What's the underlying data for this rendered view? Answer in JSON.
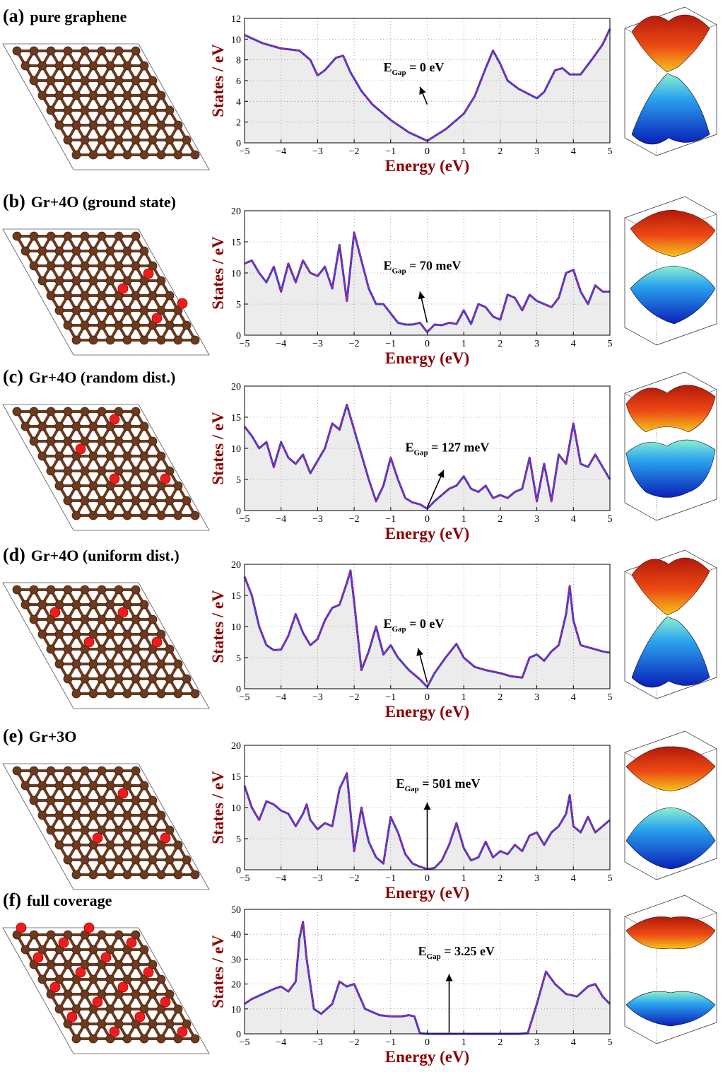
{
  "figure_title": "Graphene oxidation DOS and band structures",
  "colors": {
    "curve": "#1f3fff",
    "dash": "#ff1a1a",
    "fill": "#ececec",
    "axis_label": "#8b0000",
    "carbon": "#6b3a1f",
    "oxygen": "#ee1c1c"
  },
  "chart_data": [
    {
      "id": "a",
      "panel_label": "(a)",
      "title": "pure graphene",
      "type": "area",
      "xlabel": "Energy (eV)",
      "ylabel": "States / eV",
      "xlim": [
        -5,
        5
      ],
      "ylim": [
        0,
        12
      ],
      "xticks": [
        -5,
        -4,
        -3,
        -2,
        -1,
        0,
        1,
        2,
        3,
        4,
        5
      ],
      "yticks": [
        0,
        2,
        4,
        6,
        8,
        10,
        12
      ],
      "x": [
        -5,
        -4.5,
        -4,
        -3.5,
        -3.2,
        -3,
        -2.8,
        -2.5,
        -2.3,
        -2.1,
        -1.8,
        -1.5,
        -1,
        -0.5,
        0,
        0.5,
        1,
        1.3,
        1.6,
        1.8,
        2.0,
        2.2,
        2.5,
        3,
        3.2,
        3.5,
        3.7,
        3.9,
        4.2,
        4.5,
        4.8,
        5
      ],
      "y": [
        10.4,
        9.6,
        9.1,
        8.9,
        8.0,
        6.5,
        7.0,
        8.2,
        8.4,
        6.8,
        5.0,
        3.7,
        2.2,
        1.0,
        0.2,
        1.3,
        2.8,
        4.5,
        7.2,
        8.9,
        7.6,
        6.0,
        5.2,
        4.3,
        4.9,
        7.0,
        7.2,
        6.6,
        6.6,
        8.0,
        9.5,
        11.0
      ],
      "gap_text_main": "E",
      "gap_text_sub": "Gap",
      "gap_text_value": " = 0 eV",
      "gap_label_pos": [
        -1.2,
        6.9
      ],
      "arrow_from": [
        0.0,
        3.7
      ],
      "arrow_to": [
        -0.2,
        5.4
      ]
    },
    {
      "id": "b",
      "panel_label": "(b)",
      "title": "Gr+4O (ground state)",
      "type": "area",
      "xlabel": "Energy (eV)",
      "ylabel": "States / eV",
      "xlim": [
        -5,
        5
      ],
      "ylim": [
        0,
        20
      ],
      "xticks": [
        -5,
        -4,
        -3,
        -2,
        -1,
        0,
        1,
        2,
        3,
        4,
        5
      ],
      "yticks": [
        0,
        5,
        10,
        15,
        20
      ],
      "x": [
        -5,
        -4.8,
        -4.6,
        -4.4,
        -4.2,
        -4.0,
        -3.8,
        -3.6,
        -3.4,
        -3.2,
        -3.0,
        -2.8,
        -2.6,
        -2.4,
        -2.2,
        -2.0,
        -1.8,
        -1.6,
        -1.4,
        -1.2,
        -1.0,
        -0.8,
        -0.6,
        -0.4,
        -0.2,
        0,
        0.2,
        0.4,
        0.6,
        0.8,
        1.0,
        1.2,
        1.4,
        1.6,
        1.8,
        2.0,
        2.2,
        2.4,
        2.6,
        2.8,
        3.0,
        3.2,
        3.4,
        3.6,
        3.8,
        4.0,
        4.2,
        4.4,
        4.6,
        4.8,
        5
      ],
      "y": [
        11.5,
        12.0,
        10.0,
        8.5,
        11.0,
        7.0,
        11.5,
        8.5,
        12.0,
        10.0,
        9.5,
        11.0,
        7.5,
        14.5,
        5.5,
        16.5,
        12.0,
        7.5,
        5.0,
        5.0,
        3.5,
        2.0,
        1.7,
        1.7,
        2.0,
        0.5,
        1.7,
        1.6,
        2.0,
        1.8,
        4.0,
        1.8,
        5.0,
        4.5,
        3.0,
        2.5,
        6.5,
        6.0,
        4.0,
        6.5,
        5.5,
        5.0,
        4.5,
        6.0,
        10.0,
        10.5,
        7.0,
        5.0,
        8.0,
        7.0,
        7.0
      ],
      "gap_text_main": "E",
      "gap_text_sub": "Gap",
      "gap_text_value": " = 70 meV",
      "gap_label_pos": [
        -1.2,
        10.5
      ],
      "arrow_from": [
        0.0,
        2.0
      ],
      "arrow_to": [
        -0.2,
        7.0
      ]
    },
    {
      "id": "c",
      "panel_label": "(c)",
      "title": "Gr+4O (random dist.)",
      "type": "area",
      "xlabel": "Energy (eV)",
      "ylabel": "States / eV",
      "xlim": [
        -5,
        5
      ],
      "ylim": [
        0,
        20
      ],
      "xticks": [
        -5,
        -4,
        -3,
        -2,
        -1,
        0,
        1,
        2,
        3,
        4,
        5
      ],
      "yticks": [
        0,
        5,
        10,
        15,
        20
      ],
      "x": [
        -5,
        -4.8,
        -4.6,
        -4.4,
        -4.2,
        -4.0,
        -3.8,
        -3.6,
        -3.4,
        -3.2,
        -3.0,
        -2.8,
        -2.6,
        -2.4,
        -2.2,
        -2.0,
        -1.8,
        -1.6,
        -1.4,
        -1.2,
        -1.0,
        -0.8,
        -0.6,
        -0.4,
        -0.2,
        0,
        0.2,
        0.4,
        0.6,
        0.8,
        1.0,
        1.2,
        1.4,
        1.6,
        1.8,
        2.0,
        2.2,
        2.4,
        2.6,
        2.8,
        3.0,
        3.2,
        3.4,
        3.6,
        3.8,
        4.0,
        4.2,
        4.4,
        4.6,
        4.8,
        5
      ],
      "y": [
        13.5,
        12.0,
        10.0,
        11.0,
        7.0,
        11.0,
        8.5,
        7.5,
        9.0,
        6.0,
        8.0,
        10.0,
        14.0,
        13.0,
        17.0,
        13.0,
        9.0,
        5.0,
        1.5,
        4.0,
        8.5,
        5.0,
        2.0,
        1.3,
        1.0,
        0.3,
        1.5,
        2.5,
        3.5,
        4.0,
        5.5,
        3.5,
        3.0,
        4.0,
        2.0,
        2.5,
        2.0,
        3.0,
        3.5,
        8.5,
        1.5,
        7.5,
        1.5,
        9.0,
        7.5,
        14.0,
        7.5,
        7.0,
        9.0,
        7.0,
        5.0
      ],
      "gap_text_main": "E",
      "gap_text_sub": "Gap",
      "gap_text_value": " = 127 meV",
      "gap_label_pos": [
        -0.6,
        9.5
      ],
      "arrow_from": [
        0.0,
        0.5
      ],
      "arrow_to": [
        0.45,
        6.5
      ]
    },
    {
      "id": "d",
      "panel_label": "(d)",
      "title": "Gr+4O (uniform dist.)",
      "type": "area",
      "xlabel": "Energy (eV)",
      "ylabel": "States / eV",
      "xlim": [
        -5,
        5
      ],
      "ylim": [
        0,
        20
      ],
      "xticks": [
        -5,
        -4,
        -3,
        -2,
        -1,
        0,
        1,
        2,
        3,
        4,
        5
      ],
      "yticks": [
        0,
        5,
        10,
        15,
        20
      ],
      "x": [
        -5,
        -4.8,
        -4.6,
        -4.4,
        -4.2,
        -4.0,
        -3.8,
        -3.6,
        -3.4,
        -3.2,
        -3.0,
        -2.8,
        -2.6,
        -2.4,
        -2.2,
        -2.1,
        -2.0,
        -1.8,
        -1.6,
        -1.4,
        -1.2,
        -1.0,
        -0.8,
        -0.5,
        -0.2,
        0,
        0.2,
        0.5,
        0.8,
        1.0,
        1.3,
        1.6,
        2.0,
        2.3,
        2.6,
        2.8,
        3.0,
        3.2,
        3.4,
        3.6,
        3.8,
        3.9,
        4.0,
        4.2,
        4.5,
        4.8,
        5
      ],
      "y": [
        18.0,
        15.0,
        10.0,
        7.0,
        6.2,
        6.3,
        8.5,
        12.0,
        9.0,
        7.0,
        8.0,
        11.0,
        13.0,
        13.5,
        17.0,
        19.0,
        14.0,
        3.0,
        6.0,
        10.0,
        5.5,
        7.0,
        5.0,
        3.0,
        1.5,
        0.3,
        2.5,
        5.0,
        7.2,
        5.0,
        3.5,
        3.0,
        2.5,
        2.0,
        1.8,
        5.0,
        5.5,
        4.5,
        6.0,
        7.0,
        12.0,
        16.5,
        11.0,
        7.0,
        6.5,
        6.0,
        5.8
      ],
      "gap_text_main": "E",
      "gap_text_sub": "Gap",
      "gap_text_value": " = 0 eV",
      "gap_label_pos": [
        -1.2,
        9.8
      ],
      "arrow_from": [
        0.0,
        1.0
      ],
      "arrow_to": [
        -0.25,
        6.5
      ]
    },
    {
      "id": "e",
      "panel_label": "(e)",
      "title": "Gr+3O",
      "type": "area",
      "xlabel": "Energy (eV)",
      "ylabel": "States / eV",
      "xlim": [
        -5,
        5
      ],
      "ylim": [
        0,
        20
      ],
      "xticks": [
        -5,
        -4,
        -3,
        -2,
        -1,
        0,
        1,
        2,
        3,
        4,
        5
      ],
      "yticks": [
        0,
        5,
        10,
        15,
        20
      ],
      "x": [
        -5,
        -4.8,
        -4.6,
        -4.4,
        -4.2,
        -4.0,
        -3.8,
        -3.6,
        -3.4,
        -3.3,
        -3.2,
        -3.0,
        -2.8,
        -2.6,
        -2.4,
        -2.2,
        -2.0,
        -1.8,
        -1.7,
        -1.6,
        -1.4,
        -1.2,
        -1.0,
        -0.8,
        -0.6,
        -0.4,
        -0.2,
        0,
        0.2,
        0.4,
        0.6,
        0.8,
        1.0,
        1.2,
        1.4,
        1.6,
        1.8,
        2.0,
        2.2,
        2.4,
        2.6,
        2.8,
        3.0,
        3.2,
        3.4,
        3.6,
        3.8,
        3.9,
        4.0,
        4.2,
        4.4,
        4.6,
        4.8,
        5
      ],
      "y": [
        13.5,
        10.0,
        8.0,
        11.0,
        10.5,
        9.5,
        9.0,
        7.0,
        9.0,
        10.5,
        8.0,
        6.5,
        7.5,
        7.0,
        13.0,
        15.5,
        3.0,
        10.0,
        7.0,
        4.5,
        2.0,
        1.0,
        8.5,
        6.0,
        2.5,
        1.0,
        0.5,
        0.1,
        0.3,
        1.5,
        4.0,
        7.5,
        3.5,
        1.5,
        2.0,
        4.5,
        2.0,
        3.0,
        2.5,
        4.0,
        3.0,
        5.5,
        6.0,
        4.0,
        6.0,
        7.0,
        9.0,
        12.0,
        7.0,
        6.0,
        8.5,
        6.0,
        7.0,
        8.0
      ],
      "gap_text_main": "E",
      "gap_text_sub": "Gap",
      "gap_text_value": " = 501 meV",
      "gap_label_pos": [
        -0.85,
        13.2
      ],
      "arrow_from": [
        0.0,
        0.2
      ],
      "arrow_to": [
        0.0,
        10.8
      ]
    },
    {
      "id": "f",
      "panel_label": "(f)",
      "title": "full coverage",
      "type": "area",
      "xlabel": "Energy (eV)",
      "ylabel": "States / eV",
      "xlim": [
        -5,
        5
      ],
      "ylim": [
        0,
        50
      ],
      "xticks": [
        -5,
        -4,
        -3,
        -2,
        -1,
        0,
        1,
        2,
        3,
        4,
        5
      ],
      "yticks": [
        0,
        10,
        20,
        30,
        40,
        50
      ],
      "x": [
        -5,
        -4.8,
        -4.5,
        -4.2,
        -4.0,
        -3.8,
        -3.6,
        -3.5,
        -3.4,
        -3.3,
        -3.1,
        -2.9,
        -2.6,
        -2.4,
        -2.2,
        -2.0,
        -1.7,
        -1.3,
        -1.0,
        -0.7,
        -0.5,
        -0.35,
        -0.2,
        0,
        0.5,
        1,
        1.5,
        2,
        2.5,
        2.75,
        3.0,
        3.25,
        3.5,
        3.8,
        4.1,
        4.4,
        4.6,
        4.8,
        5
      ],
      "y": [
        12,
        14,
        16,
        18,
        19,
        17,
        21,
        38,
        45,
        30,
        10,
        8,
        12,
        21,
        19,
        20,
        10,
        7.5,
        7,
        7,
        7.5,
        7,
        0.2,
        0,
        0,
        0,
        0,
        0,
        0,
        0.2,
        12,
        25,
        20,
        16,
        15,
        19,
        20,
        15,
        12
      ],
      "gap_text_main": "E",
      "gap_text_sub": "Gap",
      "gap_text_value": " = 3.25 eV",
      "gap_label_pos": [
        -0.25,
        31.5
      ],
      "arrow_from": [
        0.6,
        0.5
      ],
      "arrow_to": [
        0.6,
        24.0
      ]
    }
  ]
}
